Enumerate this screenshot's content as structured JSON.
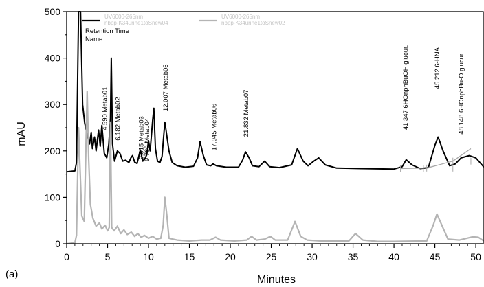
{
  "panel_label": "(a)",
  "chart_data": {
    "type": "line",
    "title": "",
    "xlabel": "Minutes",
    "ylabel": "mAU",
    "xlim": [
      0,
      51
    ],
    "ylim": [
      0,
      500
    ],
    "x_ticks": [
      0,
      5,
      10,
      15,
      20,
      25,
      30,
      35,
      40,
      45,
      50
    ],
    "y_ticks": [
      0,
      100,
      200,
      300,
      400,
      500
    ],
    "grid": false,
    "legend": {
      "placement": "top-left",
      "entries": [
        {
          "line1": "UV6000-265nm",
          "line2": "nbpp-K34urine1toSnew04",
          "color": "#000000"
        },
        {
          "line1": "UV6000-265nm",
          "line2": "nbpp-K34urine1toSnew02",
          "color": "#b4b4b4"
        }
      ],
      "notes": [
        "Retention Time",
        "Name"
      ]
    },
    "series": [
      {
        "color": "#000000",
        "points": [
          [
            0,
            155
          ],
          [
            1.0,
            157
          ],
          [
            1.2,
            175
          ],
          [
            1.45,
            500
          ],
          [
            1.7,
            500
          ],
          [
            1.95,
            300
          ],
          [
            2.2,
            260
          ],
          [
            2.5,
            235
          ],
          [
            2.8,
            215
          ],
          [
            3.0,
            240
          ],
          [
            3.15,
            205
          ],
          [
            3.4,
            230
          ],
          [
            3.6,
            200
          ],
          [
            3.9,
            245
          ],
          [
            4.1,
            210
          ],
          [
            4.3,
            255
          ],
          [
            4.6,
            195
          ],
          [
            4.9,
            185
          ],
          [
            5.15,
            215
          ],
          [
            5.35,
            270
          ],
          [
            5.45,
            400
          ],
          [
            5.6,
            215
          ],
          [
            5.85,
            178
          ],
          [
            6.2,
            200
          ],
          [
            6.5,
            195
          ],
          [
            6.85,
            178
          ],
          [
            7.2,
            180
          ],
          [
            7.6,
            175
          ],
          [
            7.85,
            185
          ],
          [
            8.05,
            190
          ],
          [
            8.3,
            176
          ],
          [
            8.6,
            173
          ],
          [
            9.0,
            202
          ],
          [
            9.3,
            178
          ],
          [
            9.55,
            183
          ],
          [
            9.8,
            192
          ],
          [
            10.0,
            222
          ],
          [
            10.2,
            200
          ],
          [
            10.5,
            265
          ],
          [
            10.65,
            292
          ],
          [
            10.85,
            205
          ],
          [
            11.1,
            178
          ],
          [
            11.4,
            175
          ],
          [
            11.65,
            188
          ],
          [
            11.85,
            230
          ],
          [
            12.0,
            262
          ],
          [
            12.2,
            238
          ],
          [
            12.5,
            200
          ],
          [
            12.9,
            175
          ],
          [
            13.5,
            168
          ],
          [
            14.5,
            165
          ],
          [
            15.5,
            167
          ],
          [
            16.0,
            185
          ],
          [
            16.3,
            220
          ],
          [
            16.7,
            190
          ],
          [
            17.1,
            170
          ],
          [
            17.6,
            168
          ],
          [
            17.9,
            172
          ],
          [
            18.3,
            168
          ],
          [
            19.5,
            165
          ],
          [
            21.0,
            165
          ],
          [
            21.5,
            180
          ],
          [
            21.85,
            198
          ],
          [
            22.3,
            185
          ],
          [
            22.7,
            168
          ],
          [
            23.5,
            166
          ],
          [
            24.2,
            178
          ],
          [
            24.8,
            166
          ],
          [
            26.0,
            164
          ],
          [
            27.5,
            170
          ],
          [
            28.2,
            205
          ],
          [
            28.9,
            178
          ],
          [
            29.5,
            168
          ],
          [
            30.2,
            178
          ],
          [
            30.8,
            185
          ],
          [
            31.6,
            170
          ],
          [
            33,
            163
          ],
          [
            36,
            162
          ],
          [
            40,
            161
          ],
          [
            41,
            166
          ],
          [
            41.5,
            181
          ],
          [
            42.2,
            170
          ],
          [
            43.2,
            162
          ],
          [
            44.2,
            164
          ],
          [
            45.0,
            212
          ],
          [
            45.4,
            230
          ],
          [
            46.0,
            200
          ],
          [
            46.8,
            168
          ],
          [
            47.5,
            172
          ],
          [
            48.2,
            185
          ],
          [
            49.2,
            190
          ],
          [
            50.0,
            185
          ],
          [
            51,
            165
          ]
        ]
      },
      {
        "color": "#b4b4b4",
        "points": [
          [
            0,
            0
          ],
          [
            1.0,
            2
          ],
          [
            1.2,
            18
          ],
          [
            1.45,
            250
          ],
          [
            1.6,
            180
          ],
          [
            1.85,
            60
          ],
          [
            2.15,
            48
          ],
          [
            2.5,
            328
          ],
          [
            2.7,
            180
          ],
          [
            2.9,
            85
          ],
          [
            3.2,
            55
          ],
          [
            3.6,
            38
          ],
          [
            4.0,
            45
          ],
          [
            4.3,
            32
          ],
          [
            4.7,
            40
          ],
          [
            5.0,
            28
          ],
          [
            5.2,
            35
          ],
          [
            5.35,
            262
          ],
          [
            5.5,
            35
          ],
          [
            5.8,
            28
          ],
          [
            6.2,
            38
          ],
          [
            6.6,
            22
          ],
          [
            7.0,
            30
          ],
          [
            7.4,
            20
          ],
          [
            7.9,
            25
          ],
          [
            8.3,
            16
          ],
          [
            8.7,
            22
          ],
          [
            9.1,
            14
          ],
          [
            9.5,
            18
          ],
          [
            10.0,
            12
          ],
          [
            10.5,
            16
          ],
          [
            11.0,
            10
          ],
          [
            11.5,
            12
          ],
          [
            11.8,
            40
          ],
          [
            12.0,
            100
          ],
          [
            12.25,
            60
          ],
          [
            12.5,
            12
          ],
          [
            13.5,
            8
          ],
          [
            15.0,
            6
          ],
          [
            16.5,
            8
          ],
          [
            17.5,
            8
          ],
          [
            18.2,
            14
          ],
          [
            18.8,
            8
          ],
          [
            20.5,
            6
          ],
          [
            22.0,
            8
          ],
          [
            22.6,
            16
          ],
          [
            23.2,
            8
          ],
          [
            24.2,
            10
          ],
          [
            24.9,
            16
          ],
          [
            25.5,
            8
          ],
          [
            27.0,
            8
          ],
          [
            27.9,
            48
          ],
          [
            28.6,
            16
          ],
          [
            29.4,
            8
          ],
          [
            31,
            6
          ],
          [
            34.5,
            6
          ],
          [
            35.3,
            22
          ],
          [
            36.2,
            8
          ],
          [
            38,
            5
          ],
          [
            40,
            5
          ],
          [
            44,
            6
          ],
          [
            44.8,
            40
          ],
          [
            45.25,
            64
          ],
          [
            45.8,
            42
          ],
          [
            46.6,
            10
          ],
          [
            48,
            8
          ],
          [
            49.6,
            15
          ],
          [
            50.3,
            14
          ],
          [
            51,
            6
          ]
        ]
      }
    ],
    "peak_labels": [
      {
        "text": "4.590 Metab01",
        "x": 4.59,
        "y_top": 338
      },
      {
        "text": "6.182 Metab02",
        "x": 6.182,
        "y_top": 316
      },
      {
        "text": "9.015 Metab03",
        "x": 9.015,
        "y_top": 275
      },
      {
        "text": "9.760 Metab04",
        "x": 9.76,
        "y_top": 271
      },
      {
        "text": "12.007 Metab05",
        "x": 12.007,
        "y_top": 387
      },
      {
        "text": "17.945 Metab06",
        "x": 17.945,
        "y_top": 302
      },
      {
        "text": "21.832 Metab07",
        "x": 21.832,
        "y_top": 332
      },
      {
        "text": "41.347 6HOnphBuOH glucur.",
        "x": 41.347,
        "y_top": 428
      },
      {
        "text": "45.212 6-HNA",
        "x": 45.212,
        "y_top": 423
      },
      {
        "text": "48.148 6HOnphBu-O glucur.",
        "x": 48.148,
        "y_top": 413
      }
    ],
    "baseline_segments": [
      {
        "from": 40.8,
        "to": 43.6,
        "y1": 162,
        "y2": 163
      },
      {
        "from": 44.0,
        "to": 47.2,
        "y1": 163,
        "y2": 178
      },
      {
        "from": 47.2,
        "to": 49.4,
        "y1": 178,
        "y2": 205
      }
    ]
  }
}
